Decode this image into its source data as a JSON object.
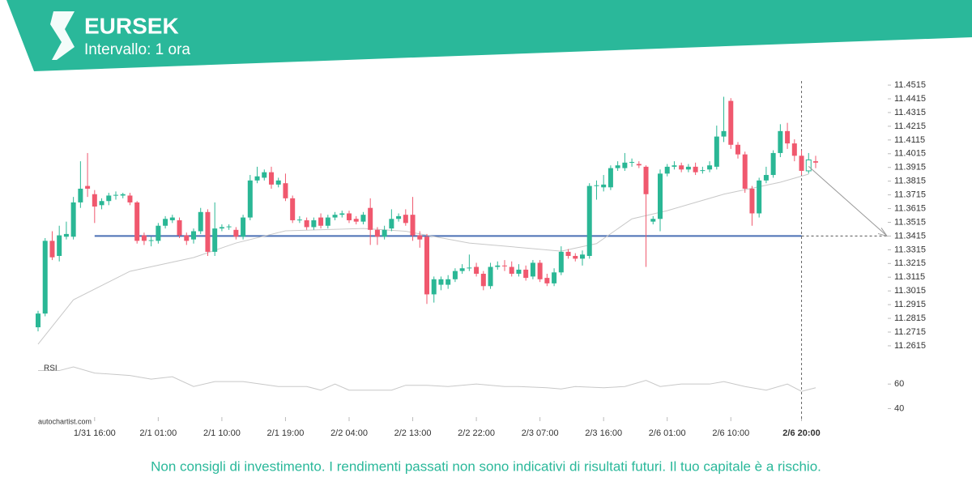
{
  "header": {
    "symbol": "EURSEK",
    "interval": "Intervallo: 1 ora"
  },
  "chart_data": {
    "type": "candlestick",
    "candles": [
      [
        11.275,
        11.287,
        11.272,
        11.285
      ],
      [
        11.285,
        11.34,
        11.283,
        11.338
      ],
      [
        11.338,
        11.345,
        11.324,
        11.326
      ],
      [
        11.327,
        11.349,
        11.323,
        11.342
      ],
      [
        11.341,
        11.352,
        11.339,
        11.343
      ],
      [
        11.341,
        11.37,
        11.339,
        11.366
      ],
      [
        11.366,
        11.396,
        11.362,
        11.376
      ],
      [
        11.378,
        11.402,
        11.37,
        11.376
      ],
      [
        11.372,
        11.375,
        11.351,
        11.363
      ],
      [
        11.364,
        11.369,
        11.361,
        11.367
      ],
      [
        11.367,
        11.373,
        11.364,
        11.371
      ],
      [
        11.371,
        11.374,
        11.368,
        11.3715
      ],
      [
        11.371,
        11.373,
        11.369,
        11.372
      ],
      [
        11.371,
        11.373,
        11.364,
        11.366
      ],
      [
        11.366,
        11.367,
        11.336,
        11.338
      ],
      [
        11.342,
        11.344,
        11.335,
        11.338
      ],
      [
        11.338,
        11.341,
        11.334,
        11.3385
      ],
      [
        11.338,
        11.351,
        11.336,
        11.349
      ],
      [
        11.349,
        11.356,
        11.347,
        11.354
      ],
      [
        11.353,
        11.357,
        11.351,
        11.355
      ],
      [
        11.353,
        11.355,
        11.34,
        11.342
      ],
      [
        11.342,
        11.344,
        11.335,
        11.338
      ],
      [
        11.339,
        11.347,
        11.336,
        11.345
      ],
      [
        11.345,
        11.362,
        11.343,
        11.359
      ],
      [
        11.359,
        11.361,
        11.327,
        11.33
      ],
      [
        11.33,
        11.366,
        11.327,
        11.347
      ],
      [
        11.347,
        11.35,
        11.345,
        11.348
      ],
      [
        11.348,
        11.35,
        11.346,
        11.3485
      ],
      [
        11.346,
        11.348,
        11.339,
        11.341
      ],
      [
        11.341,
        11.357,
        11.339,
        11.355
      ],
      [
        11.355,
        11.386,
        11.353,
        11.382
      ],
      [
        11.382,
        11.392,
        11.38,
        11.385
      ],
      [
        11.384,
        11.39,
        11.382,
        11.388
      ],
      [
        11.388,
        11.392,
        11.376,
        11.379
      ],
      [
        11.379,
        11.384,
        11.377,
        11.382
      ],
      [
        11.38,
        11.387,
        11.367,
        11.369
      ],
      [
        11.369,
        11.371,
        11.351,
        11.353
      ],
      [
        11.353,
        11.356,
        11.351,
        11.3535
      ],
      [
        11.353,
        11.355,
        11.346,
        11.348
      ],
      [
        11.348,
        11.355,
        11.346,
        11.353
      ],
      [
        11.355,
        11.358,
        11.347,
        11.349
      ],
      [
        11.349,
        11.357,
        11.347,
        11.355
      ],
      [
        11.355,
        11.359,
        11.353,
        11.357
      ],
      [
        11.357,
        11.36,
        11.355,
        11.358
      ],
      [
        11.358,
        11.36,
        11.351,
        11.353
      ],
      [
        11.354,
        11.356,
        11.35,
        11.352
      ],
      [
        11.352,
        11.359,
        11.35,
        11.357
      ],
      [
        11.362,
        11.369,
        11.335,
        11.346
      ],
      [
        11.346,
        11.348,
        11.335,
        11.341
      ],
      [
        11.341,
        11.349,
        11.339,
        11.346
      ],
      [
        11.347,
        11.361,
        11.345,
        11.354
      ],
      [
        11.354,
        11.358,
        11.352,
        11.356
      ],
      [
        11.357,
        11.361,
        11.349,
        11.351
      ],
      [
        11.357,
        11.37,
        11.338,
        11.342
      ],
      [
        11.342,
        11.345,
        11.333,
        11.339
      ],
      [
        11.341,
        11.343,
        11.292,
        11.299
      ],
      [
        11.299,
        11.312,
        11.293,
        11.31
      ],
      [
        11.306,
        11.312,
        11.302,
        11.31
      ],
      [
        11.306,
        11.313,
        11.303,
        11.31
      ],
      [
        11.31,
        11.318,
        11.308,
        11.316
      ],
      [
        11.316,
        11.321,
        11.314,
        11.318
      ],
      [
        11.318,
        11.328,
        11.316,
        11.3185
      ],
      [
        11.319,
        11.322,
        11.312,
        11.314
      ],
      [
        11.314,
        11.316,
        11.302,
        11.305
      ],
      [
        11.305,
        11.322,
        11.303,
        11.319
      ],
      [
        11.319,
        11.323,
        11.317,
        11.32
      ],
      [
        11.32,
        11.324,
        11.316,
        11.3195
      ],
      [
        11.319,
        11.323,
        11.312,
        11.314
      ],
      [
        11.314,
        11.321,
        11.312,
        11.317
      ],
      [
        11.317,
        11.32,
        11.309,
        11.311
      ],
      [
        11.312,
        11.324,
        11.31,
        11.322
      ],
      [
        11.322,
        11.324,
        11.308,
        11.31
      ],
      [
        11.311,
        11.314,
        11.305,
        11.307
      ],
      [
        11.307,
        11.318,
        11.305,
        11.315
      ],
      [
        11.315,
        11.334,
        11.313,
        11.33
      ],
      [
        11.33,
        11.332,
        11.325,
        11.327
      ],
      [
        11.327,
        11.329,
        11.323,
        11.325
      ],
      [
        11.325,
        11.331,
        11.32,
        11.328
      ],
      [
        11.327,
        11.38,
        11.325,
        11.378
      ],
      [
        11.378,
        11.382,
        11.368,
        11.3785
      ],
      [
        11.377,
        11.386,
        11.374,
        11.379
      ],
      [
        11.377,
        11.393,
        11.375,
        11.391
      ],
      [
        11.391,
        11.396,
        11.389,
        11.393
      ],
      [
        11.391,
        11.402,
        11.389,
        11.395
      ],
      [
        11.395,
        11.398,
        11.392,
        11.3955
      ],
      [
        11.394,
        11.396,
        11.391,
        11.393
      ],
      [
        11.392,
        11.393,
        11.319,
        11.372
      ],
      [
        11.352,
        11.356,
        11.35,
        11.354
      ],
      [
        11.354,
        11.39,
        11.345,
        11.387
      ],
      [
        11.387,
        11.394,
        11.385,
        11.392
      ],
      [
        11.392,
        11.396,
        11.39,
        11.393
      ],
      [
        11.393,
        11.395,
        11.388,
        11.39
      ],
      [
        11.39,
        11.394,
        11.388,
        11.392
      ],
      [
        11.392,
        11.395,
        11.386,
        11.388
      ],
      [
        11.389,
        11.392,
        11.387,
        11.3895
      ],
      [
        11.39,
        11.396,
        11.388,
        11.393
      ],
      [
        11.392,
        11.422,
        11.39,
        11.414
      ],
      [
        11.414,
        11.443,
        11.41,
        11.418
      ],
      [
        11.44,
        11.442,
        11.405,
        11.408
      ],
      [
        11.408,
        11.41,
        11.398,
        11.401
      ],
      [
        11.401,
        11.403,
        11.373,
        11.376
      ],
      [
        11.376,
        11.378,
        11.349,
        11.358
      ],
      [
        11.358,
        11.384,
        11.355,
        11.382
      ],
      [
        11.382,
        11.392,
        11.38,
        11.386
      ],
      [
        11.386,
        11.404,
        11.384,
        11.402
      ],
      [
        11.402,
        11.423,
        11.399,
        11.418
      ],
      [
        11.418,
        11.424,
        11.405,
        11.409
      ],
      [
        11.409,
        11.412,
        11.396,
        11.4
      ],
      [
        11.4,
        11.404,
        11.386,
        11.389
      ],
      [
        11.389,
        11.402,
        11.387,
        11.397
      ],
      [
        11.396,
        11.4,
        11.391,
        11.395
      ]
    ],
    "up_color": "#2ab795",
    "down_color": "#f0586e",
    "xlim": [
      0,
      110
    ],
    "xticks": [
      {
        "value": 8,
        "label": "1/31 16:00"
      },
      {
        "value": 17,
        "label": "2/1 01:00"
      },
      {
        "value": 26,
        "label": "2/1 10:00"
      },
      {
        "value": 35,
        "label": "2/1 19:00"
      },
      {
        "value": 44,
        "label": "2/2 04:00"
      },
      {
        "value": 53,
        "label": "2/2 13:00"
      },
      {
        "value": 62,
        "label": "2/2 22:00"
      },
      {
        "value": 71,
        "label": "2/3 07:00"
      },
      {
        "value": 80,
        "label": "2/3 16:00"
      },
      {
        "value": 89,
        "label": "2/6 01:00"
      },
      {
        "value": 98,
        "label": "2/6 10:00"
      },
      {
        "value": 108,
        "label": "2/6 20:00"
      }
    ],
    "ylim": [
      11.2538,
      11.4545
    ],
    "yticks": [
      11.4515,
      11.4415,
      11.4315,
      11.4215,
      11.4115,
      11.4015,
      11.3915,
      11.3815,
      11.3715,
      11.3615,
      11.3515,
      11.3415,
      11.3315,
      11.3215,
      11.3115,
      11.3015,
      11.2915,
      11.2815,
      11.2715,
      11.2615
    ],
    "level": 11.3415,
    "level_color": "#4a6fb5",
    "ma": {
      "color": "#c8c8c8",
      "x": [
        0,
        5,
        13,
        22,
        28,
        35,
        46,
        52,
        61,
        74,
        79,
        84,
        89,
        97,
        105,
        109
      ],
      "values": [
        11.2627,
        11.295,
        11.3158,
        11.3258,
        11.3364,
        11.3453,
        11.347,
        11.345,
        11.3364,
        11.3305,
        11.336,
        11.354,
        11.36,
        11.372,
        11.3807,
        11.3866
      ]
    },
    "rsi": {
      "label": "RSI",
      "color": "#c8c8c8",
      "ylim": [
        33,
        76
      ],
      "yticks": [
        60,
        40
      ],
      "x": [
        0,
        3,
        5,
        8,
        13,
        16,
        19,
        22,
        25,
        29,
        34,
        38,
        40,
        42,
        44,
        50,
        52,
        55,
        58,
        62,
        66,
        68,
        72,
        74,
        76,
        80,
        83,
        86,
        88,
        91,
        95,
        97,
        100,
        103,
        106,
        108,
        110
      ],
      "values": [
        71,
        71,
        74,
        69,
        67,
        64,
        66,
        58,
        62,
        62,
        58,
        58,
        55,
        60,
        55,
        55,
        59,
        59,
        58,
        60,
        58,
        58,
        57,
        56,
        58,
        57,
        58,
        63,
        58,
        60,
        60,
        62,
        58,
        55,
        60,
        54,
        57
      ]
    },
    "source": "autochartist.com"
  },
  "footer": "Non consigli di investimento. I rendimenti passati non sono indicativi di risultati futuri. Il tuo capitale è a rischio."
}
